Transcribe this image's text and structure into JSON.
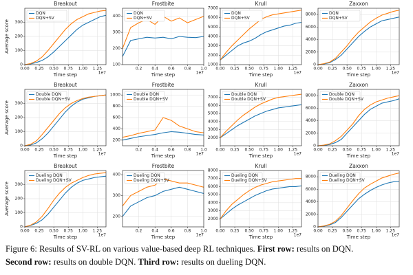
{
  "chart_data": [
    {
      "type": "line",
      "title": "Breakout",
      "xlabel": "Time step",
      "ylabel": "Average score",
      "x_offset_label": "1e7",
      "legend": "upper left",
      "grid": true,
      "x": [
        0,
        0.1,
        0.2,
        0.3,
        0.4,
        0.5,
        0.6,
        0.7,
        0.8,
        0.9,
        1.0,
        1.1,
        1.2,
        1.3,
        1.4
      ],
      "series": [
        {
          "name": "DQN",
          "color": "#1f77b4",
          "values": [
            0,
            5,
            15,
            30,
            55,
            90,
            130,
            170,
            210,
            250,
            280,
            300,
            320,
            340,
            350
          ]
        },
        {
          "name": "DQN+SV",
          "color": "#ff7f0e",
          "values": [
            0,
            8,
            25,
            55,
            100,
            150,
            200,
            250,
            290,
            320,
            340,
            360,
            370,
            380,
            385
          ]
        }
      ],
      "xlim": [
        0,
        1.4
      ],
      "xticks": [
        {
          "value": 0,
          "label": "0.00"
        },
        0.25,
        {
          "value": 0.5,
          "label": "0.50"
        },
        0.75,
        {
          "value": 1,
          "label": "1.00"
        },
        1.25
      ],
      "ylim": [
        0,
        400
      ],
      "yticks": [
        0,
        100,
        200,
        300
      ]
    },
    {
      "type": "line",
      "title": "Frostbite",
      "xlabel": "Time step",
      "x_offset_label": "1e7",
      "legend": "upper left",
      "grid": true,
      "x": [
        0,
        0.1,
        0.2,
        0.3,
        0.4,
        0.5,
        0.6,
        0.7,
        0.8,
        0.9,
        1.0
      ],
      "series": [
        {
          "name": "DQN",
          "color": "#1f77b4",
          "values": [
            150,
            250,
            260,
            270,
            265,
            270,
            260,
            275,
            270,
            268,
            275
          ]
        },
        {
          "name": "DQN+SV",
          "color": "#ff7f0e",
          "values": [
            200,
            330,
            360,
            380,
            350,
            400,
            370,
            390,
            360,
            380,
            400
          ]
        }
      ],
      "xlim": [
        0,
        1.0
      ],
      "xticks": [
        0.2,
        0.4,
        0.6,
        0.8,
        {
          "value": 1,
          "label": "1.0"
        }
      ],
      "ylim": [
        100,
        450
      ],
      "yticks": [
        100,
        200,
        300,
        400
      ]
    },
    {
      "type": "line",
      "title": "Krull",
      "xlabel": "Time step",
      "x_offset_label": "1e7",
      "legend": "upper left",
      "grid": true,
      "x": [
        0,
        0.1,
        0.2,
        0.3,
        0.4,
        0.5,
        0.6,
        0.7,
        0.8,
        0.9,
        1.0,
        1.1,
        1.2,
        1.3,
        1.4
      ],
      "series": [
        {
          "name": "DQN",
          "color": "#1f77b4",
          "values": [
            1500,
            2000,
            2500,
            3000,
            3300,
            3500,
            3800,
            4200,
            4500,
            4700,
            4900,
            5100,
            5200,
            5400,
            5500
          ]
        },
        {
          "name": "DQN+SV",
          "color": "#ff7f0e",
          "values": [
            1500,
            2300,
            3000,
            3600,
            4200,
            4800,
            5300,
            5800,
            6100,
            6300,
            6400,
            6500,
            6600,
            6700,
            6800
          ]
        }
      ],
      "xlim": [
        0,
        1.4
      ],
      "xticks": [
        {
          "value": 0,
          "label": "0.00"
        },
        0.25,
        {
          "value": 0.5,
          "label": "0.50"
        },
        0.75,
        {
          "value": 1,
          "label": "1.00"
        },
        1.25
      ],
      "ylim": [
        1000,
        7000
      ],
      "yticks": [
        1000,
        2000,
        3000,
        4000,
        5000,
        6000,
        7000
      ]
    },
    {
      "type": "line",
      "title": "Zaxxon",
      "xlabel": "Time step",
      "x_offset_label": "1e7",
      "legend": "upper left",
      "grid": true,
      "x": [
        0,
        0.1,
        0.2,
        0.3,
        0.4,
        0.5,
        0.6,
        0.7,
        0.8,
        0.9,
        1.0,
        1.1,
        1.2,
        1.3,
        1.4
      ],
      "series": [
        {
          "name": "DQN",
          "color": "#1f77b4",
          "values": [
            0,
            100,
            300,
            800,
            1500,
            2500,
            3500,
            4500,
            5300,
            6000,
            6500,
            7000,
            7200,
            7400,
            7600
          ]
        },
        {
          "name": "DQN+SV",
          "color": "#ff7f0e",
          "values": [
            0,
            150,
            400,
            1000,
            2000,
            3000,
            4200,
            5200,
            6000,
            6800,
            7400,
            7900,
            8200,
            8500,
            8700
          ]
        }
      ],
      "xlim": [
        0,
        1.4
      ],
      "xticks": [
        {
          "value": 0,
          "label": "0.00"
        },
        0.25,
        {
          "value": 0.5,
          "label": "0.50"
        },
        0.75,
        {
          "value": 1,
          "label": "1.00"
        },
        1.25
      ],
      "ylim": [
        0,
        9000
      ],
      "yticks": [
        0,
        2000,
        4000,
        6000,
        8000
      ]
    },
    {
      "type": "line",
      "title": "Breakout",
      "xlabel": "Time step",
      "ylabel": "Average score",
      "x_offset_label": "1e7",
      "legend": "upper left",
      "grid": true,
      "x": [
        0,
        0.1,
        0.2,
        0.3,
        0.4,
        0.5,
        0.6,
        0.7,
        0.8,
        0.9,
        1.0,
        1.1,
        1.2,
        1.3,
        1.4
      ],
      "series": [
        {
          "name": "Double DQN",
          "color": "#1f77b4",
          "values": [
            0,
            5,
            20,
            50,
            90,
            140,
            190,
            240,
            280,
            310,
            330,
            340,
            350,
            355,
            360
          ]
        },
        {
          "name": "Double DQN+SV",
          "color": "#ff7f0e",
          "values": [
            0,
            10,
            35,
            80,
            130,
            180,
            230,
            270,
            300,
            320,
            335,
            345,
            350,
            355,
            360
          ]
        }
      ],
      "xlim": [
        0,
        1.4
      ],
      "xticks": [
        {
          "value": 0,
          "label": "0.00"
        },
        0.25,
        {
          "value": 0.5,
          "label": "0.50"
        },
        0.75,
        {
          "value": 1,
          "label": "1.00"
        },
        1.25
      ],
      "ylim": [
        0,
        400
      ],
      "yticks": [
        0,
        100,
        200,
        300
      ]
    },
    {
      "type": "line",
      "title": "Frostbite",
      "xlabel": "Time step",
      "x_offset_label": "1e7",
      "legend": "upper left",
      "grid": true,
      "x": [
        0,
        0.1,
        0.2,
        0.3,
        0.4,
        0.5,
        0.6,
        0.7,
        0.8,
        0.9,
        1.0
      ],
      "series": [
        {
          "name": "Double DQN",
          "color": "#1f77b4",
          "values": [
            200,
            230,
            260,
            280,
            300,
            330,
            350,
            340,
            320,
            300,
            290
          ]
        },
        {
          "name": "Double DQN+SV",
          "color": "#ff7f0e",
          "values": [
            250,
            280,
            320,
            350,
            380,
            600,
            550,
            450,
            400,
            350,
            330
          ]
        }
      ],
      "xlim": [
        0,
        1.0
      ],
      "xticks": [
        0.2,
        0.4,
        0.6,
        0.8,
        {
          "value": 1,
          "label": "1.0"
        }
      ],
      "ylim": [
        100,
        1100
      ],
      "yticks": [
        200,
        400,
        600,
        800,
        1000
      ]
    },
    {
      "type": "line",
      "title": "Krull",
      "xlabel": "Time step",
      "x_offset_label": "1e7",
      "legend": "upper left",
      "grid": true,
      "x": [
        0,
        0.1,
        0.2,
        0.3,
        0.4,
        0.5,
        0.6,
        0.7,
        0.8,
        0.9,
        1.0,
        1.1,
        1.2,
        1.3,
        1.4
      ],
      "series": [
        {
          "name": "Double DQN",
          "color": "#1f77b4",
          "values": [
            2000,
            2500,
            3000,
            3500,
            3900,
            4300,
            4700,
            5000,
            5300,
            5500,
            5700,
            5800,
            5900,
            6000,
            6100
          ]
        },
        {
          "name": "Double DQN+SV",
          "color": "#ff7f0e",
          "values": [
            2000,
            2800,
            3500,
            4200,
            4800,
            5300,
            5800,
            6200,
            6500,
            6800,
            7000,
            7100,
            7200,
            7300,
            7400
          ]
        }
      ],
      "xlim": [
        0,
        1.4
      ],
      "xticks": [
        {
          "value": 0,
          "label": "0.00"
        },
        0.25,
        {
          "value": 0.5,
          "label": "0.50"
        },
        0.75,
        {
          "value": 1,
          "label": "1.00"
        },
        1.25
      ],
      "ylim": [
        1000,
        8000
      ],
      "yticks": [
        2000,
        3000,
        4000,
        5000,
        6000,
        7000
      ]
    },
    {
      "type": "line",
      "title": "Zaxxon",
      "xlabel": "Time step",
      "x_offset_label": "1e7",
      "legend": "upper left",
      "grid": true,
      "x": [
        0,
        0.1,
        0.2,
        0.3,
        0.4,
        0.5,
        0.6,
        0.7,
        0.8,
        0.9,
        1.0,
        1.1,
        1.2,
        1.3,
        1.4
      ],
      "series": [
        {
          "name": "Double DQN",
          "color": "#1f77b4",
          "values": [
            0,
            50,
            200,
            500,
            1000,
            2000,
            3000,
            4000,
            5000,
            5800,
            6300,
            6800,
            7000,
            7200,
            7500
          ]
        },
        {
          "name": "Double DQN+SV",
          "color": "#ff7f0e",
          "values": [
            0,
            100,
            300,
            800,
            1500,
            2500,
            3500,
            4800,
            5800,
            6500,
            7000,
            7300,
            7600,
            7800,
            8000
          ]
        }
      ],
      "xlim": [
        0,
        1.4
      ],
      "xticks": [
        {
          "value": 0,
          "label": "0.00"
        },
        0.25,
        {
          "value": 0.5,
          "label": "0.50"
        },
        0.75,
        {
          "value": 1,
          "label": "1.00"
        },
        1.25
      ],
      "ylim": [
        0,
        9000
      ],
      "yticks": [
        0,
        2000,
        4000,
        6000,
        8000
      ]
    },
    {
      "type": "line",
      "title": "Breakout",
      "xlabel": "Time step",
      "ylabel": "Average score",
      "x_offset_label": "1e7",
      "legend": "upper left",
      "grid": true,
      "x": [
        0,
        0.1,
        0.2,
        0.3,
        0.4,
        0.5,
        0.6,
        0.7,
        0.8,
        0.9,
        1.0,
        1.1,
        1.2,
        1.3,
        1.4
      ],
      "series": [
        {
          "name": "Dueling DQN",
          "color": "#1f77b4",
          "values": [
            0,
            10,
            25,
            50,
            90,
            140,
            190,
            240,
            280,
            310,
            330,
            340,
            350,
            355,
            360
          ]
        },
        {
          "name": "Dueling DQN+SV",
          "color": "#ff7f0e",
          "values": [
            0,
            12,
            35,
            75,
            130,
            190,
            240,
            280,
            310,
            330,
            350,
            365,
            375,
            380,
            385
          ]
        }
      ],
      "xlim": [
        0,
        1.4
      ],
      "xticks": [
        {
          "value": 0,
          "label": "0.00"
        },
        0.25,
        {
          "value": 0.5,
          "label": "0.50"
        },
        0.75,
        {
          "value": 1,
          "label": "1.00"
        },
        1.25
      ],
      "ylim": [
        0,
        400
      ],
      "yticks": [
        0,
        100,
        200,
        300
      ]
    },
    {
      "type": "line",
      "title": "Frostbite",
      "xlabel": "Time step",
      "x_offset_label": "1e7",
      "legend": "upper left",
      "grid": true,
      "x": [
        0,
        0.1,
        0.2,
        0.3,
        0.4,
        0.5,
        0.6,
        0.7,
        0.8,
        0.9,
        1.0
      ],
      "series": [
        {
          "name": "Dueling DQN",
          "color": "#1f77b4",
          "values": [
            200,
            250,
            270,
            290,
            300,
            320,
            330,
            340,
            330,
            320,
            310
          ]
        },
        {
          "name": "Dueling DQN+SV",
          "color": "#ff7f0e",
          "values": [
            250,
            300,
            320,
            340,
            350,
            380,
            370,
            360,
            360,
            350,
            340
          ]
        }
      ],
      "xlim": [
        0,
        1.0
      ],
      "xticks": [
        0.2,
        0.4,
        0.6,
        0.8,
        {
          "value": 1,
          "label": "1.0"
        }
      ],
      "ylim": [
        150,
        420
      ],
      "yticks": [
        200,
        300,
        400
      ]
    },
    {
      "type": "line",
      "title": "Krull",
      "xlabel": "Time step",
      "x_offset_label": "1e7",
      "legend": "upper left",
      "grid": true,
      "x": [
        0,
        0.1,
        0.2,
        0.3,
        0.4,
        0.5,
        0.6,
        0.7,
        0.8,
        0.9,
        1.0,
        1.1,
        1.2,
        1.3,
        1.4
      ],
      "series": [
        {
          "name": "Dueling DQN",
          "color": "#1f77b4",
          "values": [
            2000,
            2600,
            3200,
            3700,
            4100,
            4500,
            4900,
            5200,
            5500,
            5700,
            5800,
            5900,
            6000,
            6000,
            6100
          ]
        },
        {
          "name": "Dueling DQN+SV",
          "color": "#ff7f0e",
          "values": [
            2000,
            3000,
            3800,
            4400,
            5000,
            5500,
            5900,
            6200,
            6400,
            6600,
            6700,
            6800,
            6900,
            7000,
            7000
          ]
        }
      ],
      "xlim": [
        0,
        1.4
      ],
      "xticks": [
        {
          "value": 0,
          "label": "0.00"
        },
        0.25,
        {
          "value": 0.5,
          "label": "0.50"
        },
        0.75,
        {
          "value": 1,
          "label": "1.00"
        },
        1.25
      ],
      "ylim": [
        1000,
        8000
      ],
      "yticks": [
        2000,
        3000,
        4000,
        5000,
        6000,
        7000,
        8000
      ]
    },
    {
      "type": "line",
      "title": "Zaxxon",
      "xlabel": "Time step",
      "x_offset_label": "1e7",
      "legend": "upper left",
      "grid": true,
      "x": [
        0,
        0.1,
        0.2,
        0.3,
        0.4,
        0.5,
        0.6,
        0.7,
        0.8,
        0.9,
        1.0,
        1.1,
        1.2,
        1.3,
        1.4
      ],
      "series": [
        {
          "name": "Dueling DQN",
          "color": "#1f77b4",
          "values": [
            0,
            100,
            300,
            700,
            1500,
            2500,
            3500,
            4500,
            5200,
            5800,
            6300,
            6700,
            7000,
            7200,
            7300
          ]
        },
        {
          "name": "Dueling DQN+SV",
          "color": "#ff7f0e",
          "values": [
            0,
            150,
            400,
            900,
            1800,
            3000,
            4200,
            5300,
            6200,
            6800,
            7300,
            7800,
            8100,
            8400,
            8600
          ]
        }
      ],
      "xlim": [
        0,
        1.4
      ],
      "xticks": [
        {
          "value": 0,
          "label": "0.00"
        },
        0.25,
        {
          "value": 0.5,
          "label": "0.50"
        },
        0.75,
        {
          "value": 1,
          "label": "1.00"
        },
        1.25
      ],
      "ylim": [
        0,
        9000
      ],
      "yticks": [
        0,
        2000,
        4000,
        6000,
        8000
      ]
    }
  ],
  "caption": {
    "intro": "Figure 6: Results of SV-RL on various value-based deep RL techniques.",
    "rows": [
      {
        "label": "First row:",
        "text": "results on DQN."
      },
      {
        "label": "Second row:",
        "text": "results on double DQN."
      },
      {
        "label": "Third row:",
        "text": "results on dueling DQN."
      }
    ]
  }
}
